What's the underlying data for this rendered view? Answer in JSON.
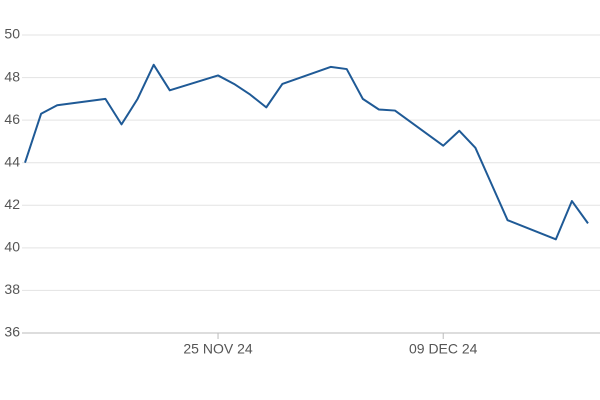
{
  "chart_data": {
    "type": "line",
    "x": [
      "2024-11-13",
      "2024-11-14",
      "2024-11-15",
      "2024-11-18",
      "2024-11-19",
      "2024-11-20",
      "2024-11-21",
      "2024-11-22",
      "2024-11-25",
      "2024-11-26",
      "2024-11-27",
      "2024-11-28",
      "2024-11-29",
      "2024-12-02",
      "2024-12-03",
      "2024-12-04",
      "2024-12-05",
      "2024-12-06",
      "2024-12-09",
      "2024-12-10",
      "2024-12-11",
      "2024-12-12",
      "2024-12-13",
      "2024-12-16",
      "2024-12-17",
      "2024-12-18"
    ],
    "series": [
      {
        "color": "#1f5a96",
        "values": [
          44.0,
          46.3,
          46.7,
          47.0,
          45.8,
          47.0,
          48.6,
          47.4,
          48.1,
          47.7,
          47.2,
          46.6,
          47.7,
          48.5,
          48.4,
          47.0,
          46.5,
          46.45,
          44.8,
          45.5,
          44.7,
          43.0,
          41.3,
          40.4,
          42.2,
          41.15
        ]
      }
    ],
    "xlim": [
      "2024-11-13",
      "2024-12-18"
    ],
    "xticks": [
      {
        "value": "2024-11-25",
        "label": "25 NOV 24"
      },
      {
        "value": "2024-12-09",
        "label": "09 DEC 24"
      }
    ],
    "ylim": [
      36,
      50
    ],
    "yticks": [
      36,
      38,
      40,
      42,
      44,
      46,
      48,
      50
    ],
    "grid": true
  }
}
